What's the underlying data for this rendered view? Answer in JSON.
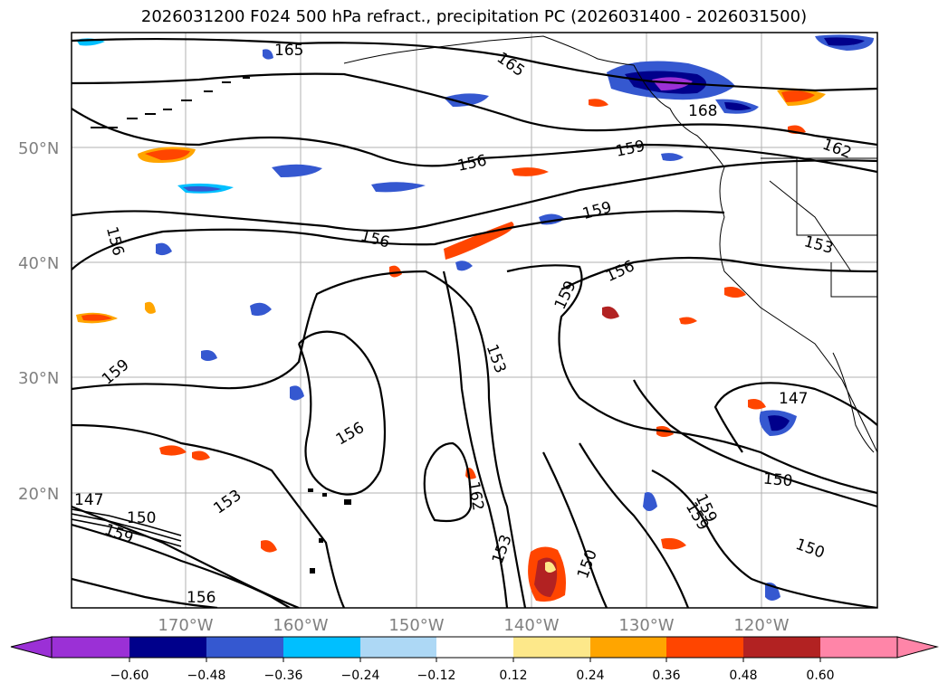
{
  "title": "2026031200 F024 500 hPa refract., precipitation PC (2026031400 - 2026031500)",
  "latitude_labels": [
    "50°N",
    "40°N",
    "30°N",
    "20°N"
  ],
  "longitude_labels": [
    "170°W",
    "160°W",
    "150°W",
    "140°W",
    "130°W",
    "120°W"
  ],
  "contour_labels": [
    "165",
    "165",
    "168",
    "162",
    "159",
    "159",
    "156",
    "156",
    "156",
    "159",
    "156",
    "159",
    "153",
    "156",
    "159",
    "153",
    "153",
    "147",
    "150",
    "159",
    "153",
    "162",
    "150",
    "159",
    "150",
    "150",
    "147",
    "156"
  ],
  "colorbar": {
    "tick_labels": [
      "−0.60",
      "−0.48",
      "−0.36",
      "−0.24",
      "−0.12",
      "0.12",
      "0.24",
      "0.36",
      "0.48",
      "0.60"
    ],
    "colors": [
      "#9b30d6",
      "#00008b",
      "#3558d0",
      "#00bfff",
      "#add8f5",
      "#ffffff",
      "#fde88a",
      "#ffa500",
      "#ff4500",
      "#b22222",
      "#ff85a8"
    ]
  },
  "colors": {
    "neg_dark": "#00008b",
    "neg_purple": "#9b30d6",
    "neg_mid": "#3558d0",
    "neg_light": "#00bfff",
    "pos_yellow": "#fde88a",
    "pos_orange": "#ffa500",
    "pos_red": "#ff4500",
    "pos_darkred": "#b22222"
  }
}
